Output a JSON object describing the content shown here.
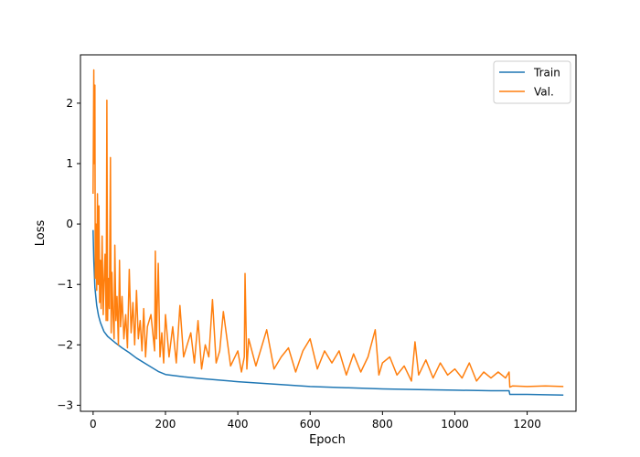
{
  "chart_data": {
    "type": "line",
    "title": "",
    "xlabel": "Epoch",
    "ylabel": "Loss",
    "xlim": [
      -35,
      1335
    ],
    "ylim": [
      -3.1,
      2.8
    ],
    "xticks": [
      0,
      200,
      400,
      600,
      800,
      1000,
      1200
    ],
    "yticks": [
      2,
      1,
      0,
      -1,
      -2,
      -3
    ],
    "grid": false,
    "legend_position": "top-right",
    "series": [
      {
        "name": "Train",
        "color": "#1f77b4",
        "x": [
          0,
          2,
          5,
          10,
          15,
          20,
          30,
          40,
          50,
          60,
          80,
          100,
          120,
          150,
          180,
          200,
          250,
          300,
          400,
          500,
          600,
          700,
          800,
          900,
          1000,
          1100,
          1150,
          1152,
          1200,
          1300
        ],
        "y": [
          -0.1,
          -0.6,
          -1.05,
          -1.35,
          -1.52,
          -1.63,
          -1.78,
          -1.86,
          -1.91,
          -1.96,
          -2.05,
          -2.13,
          -2.22,
          -2.33,
          -2.44,
          -2.49,
          -2.53,
          -2.56,
          -2.61,
          -2.65,
          -2.69,
          -2.71,
          -2.73,
          -2.74,
          -2.75,
          -2.76,
          -2.76,
          -2.82,
          -2.82,
          -2.83
        ]
      },
      {
        "name": "Val.",
        "color": "#ff7f0e",
        "x": [
          0,
          2,
          3,
          5,
          6,
          8,
          10,
          12,
          14,
          16,
          18,
          20,
          22,
          25,
          28,
          30,
          33,
          36,
          38,
          40,
          42,
          45,
          48,
          50,
          52,
          55,
          58,
          60,
          63,
          66,
          70,
          73,
          76,
          80,
          85,
          90,
          95,
          100,
          105,
          110,
          115,
          120,
          125,
          130,
          135,
          140,
          145,
          150,
          160,
          170,
          172,
          175,
          180,
          185,
          190,
          195,
          200,
          210,
          220,
          230,
          240,
          250,
          260,
          270,
          280,
          290,
          300,
          310,
          320,
          330,
          340,
          350,
          360,
          380,
          400,
          410,
          418,
          420,
          425,
          430,
          450,
          480,
          500,
          520,
          540,
          560,
          580,
          600,
          620,
          640,
          660,
          680,
          700,
          720,
          740,
          760,
          780,
          790,
          800,
          820,
          840,
          860,
          880,
          890,
          900,
          920,
          940,
          960,
          980,
          1000,
          1020,
          1040,
          1060,
          1080,
          1100,
          1120,
          1140,
          1150,
          1152,
          1160,
          1200,
          1250,
          1300
        ],
        "y": [
          0.5,
          2.55,
          1.0,
          2.3,
          -0.9,
          0.0,
          -1.1,
          0.5,
          -1.0,
          0.3,
          -1.3,
          -0.6,
          -1.4,
          -0.2,
          -1.5,
          -1.0,
          -0.5,
          -1.6,
          2.05,
          -1.6,
          -0.9,
          -1.4,
          1.1,
          -1.8,
          -0.8,
          -1.5,
          -1.9,
          -0.35,
          -1.6,
          -1.2,
          -2.0,
          -0.6,
          -1.7,
          -1.2,
          -1.9,
          -1.5,
          -2.05,
          -0.75,
          -1.8,
          -1.3,
          -2.0,
          -1.1,
          -1.9,
          -1.6,
          -2.1,
          -1.4,
          -2.2,
          -1.7,
          -1.5,
          -2.1,
          -0.45,
          -1.9,
          -0.65,
          -2.2,
          -1.8,
          -2.3,
          -1.5,
          -2.2,
          -1.7,
          -2.3,
          -1.35,
          -2.2,
          -2.0,
          -1.8,
          -2.3,
          -1.6,
          -2.4,
          -2.0,
          -2.2,
          -1.25,
          -2.3,
          -2.1,
          -1.45,
          -2.35,
          -2.1,
          -2.45,
          -2.2,
          -0.82,
          -2.4,
          -1.9,
          -2.35,
          -1.75,
          -2.4,
          -2.2,
          -2.05,
          -2.45,
          -2.1,
          -1.9,
          -2.4,
          -2.1,
          -2.3,
          -2.1,
          -2.5,
          -2.15,
          -2.45,
          -2.2,
          -1.75,
          -2.5,
          -2.3,
          -2.2,
          -2.5,
          -2.35,
          -2.6,
          -1.95,
          -2.5,
          -2.25,
          -2.55,
          -2.3,
          -2.5,
          -2.4,
          -2.55,
          -2.3,
          -2.6,
          -2.45,
          -2.55,
          -2.45,
          -2.55,
          -2.45,
          -2.7,
          -2.68,
          -2.69,
          -2.68,
          -2.69
        ]
      }
    ]
  }
}
